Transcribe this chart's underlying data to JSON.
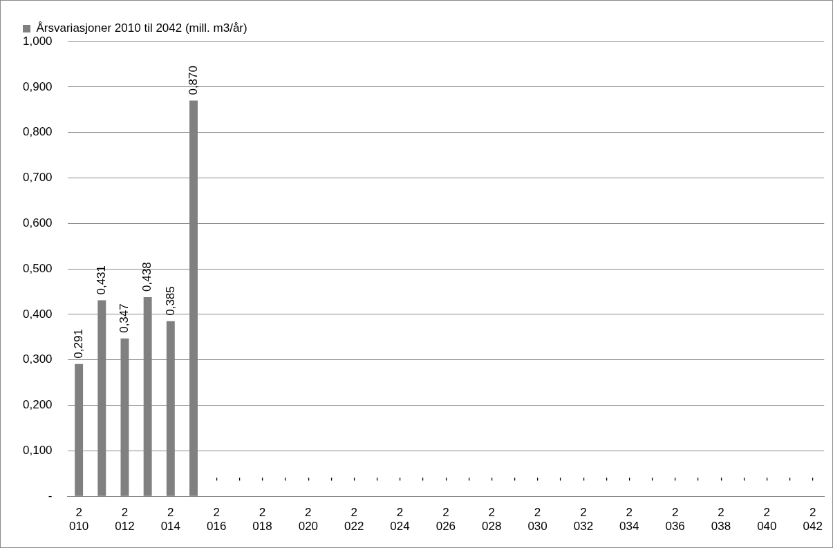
{
  "chart_data": {
    "type": "bar",
    "categories": [
      "2010",
      null,
      "2012",
      null,
      "2014",
      null,
      "2016",
      null,
      "2018",
      null,
      "2020",
      null,
      "2022",
      null,
      "2024",
      null,
      "2026",
      null,
      "2028",
      null,
      "2030",
      null,
      "2032",
      null,
      "2034",
      null,
      "2036",
      null,
      "2038",
      null,
      "2040",
      null,
      "2042"
    ],
    "series": [
      {
        "name": "Årsvariasjoner 2010 til 2042 (mill. m3/år)",
        "color": "#808080",
        "values": [
          0.291,
          0.431,
          0.347,
          0.438,
          0.385,
          0.87,
          0,
          0,
          0,
          0,
          0,
          0,
          0,
          0,
          0,
          0,
          0,
          0,
          0,
          0,
          0,
          0,
          0,
          0,
          0,
          0,
          0,
          0,
          0,
          0,
          0,
          0,
          0
        ],
        "value_labels": [
          "0,291",
          "0,431",
          "0,347",
          "0,438",
          "0,385",
          "0,870",
          "-",
          "-",
          "-",
          "-",
          "-",
          "-",
          "-",
          "-",
          "-",
          "-",
          "-",
          "-",
          "-",
          "-",
          "-",
          "-",
          "-",
          "-",
          "-",
          "-",
          "-",
          "-",
          "-",
          "-",
          "-",
          "-",
          "-"
        ]
      }
    ],
    "ylim": [
      0,
      1
    ],
    "yticks": [
      {
        "value": 0,
        "label": "-"
      },
      {
        "value": 0.1,
        "label": "0,100"
      },
      {
        "value": 0.2,
        "label": "0,200"
      },
      {
        "value": 0.3,
        "label": "0,300"
      },
      {
        "value": 0.4,
        "label": "0,400"
      },
      {
        "value": 0.5,
        "label": "0,500"
      },
      {
        "value": 0.6,
        "label": "0,600"
      },
      {
        "value": 0.7,
        "label": "0,700"
      },
      {
        "value": 0.8,
        "label": "0,800"
      },
      {
        "value": 0.9,
        "label": "0,900"
      },
      {
        "value": 1,
        "label": "1,000"
      }
    ],
    "grid": "y",
    "legend": "top left"
  }
}
